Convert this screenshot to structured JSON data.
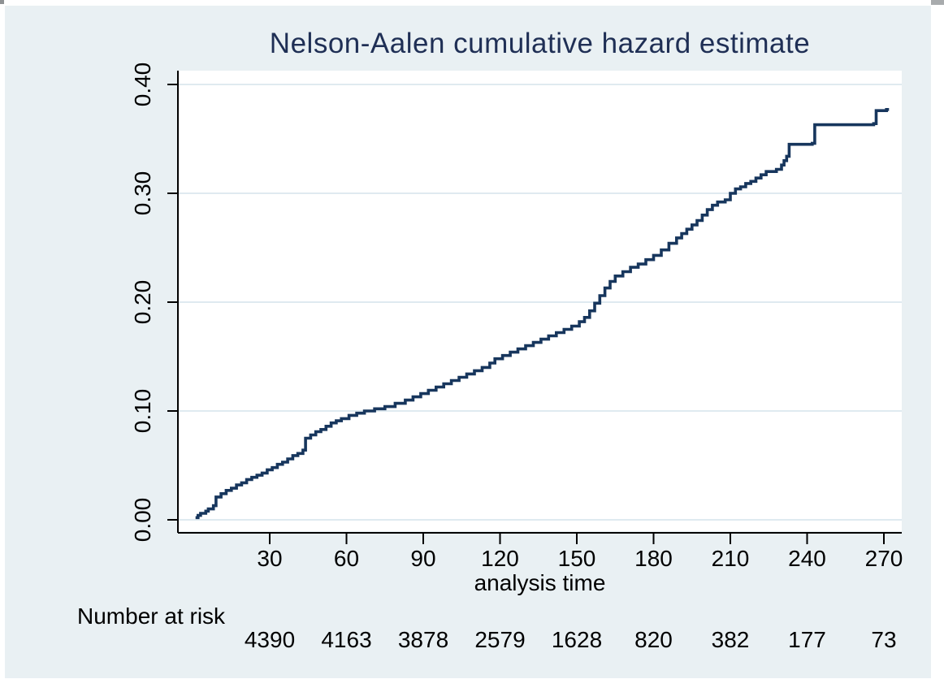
{
  "title": "Nelson-Aalen cumulative hazard estimate",
  "x_axis": {
    "label": "analysis time",
    "tick_labels": [
      "30",
      "60",
      "90",
      "120",
      "150",
      "180",
      "210",
      "240",
      "270"
    ]
  },
  "y_axis": {
    "tick_labels": [
      "0.00",
      "0.10",
      "0.20",
      "0.30",
      "0.40"
    ]
  },
  "risk_table": {
    "label": "Number at risk",
    "values": [
      "4390",
      "4163",
      "3878",
      "2579",
      "1628",
      "820",
      "382",
      "177",
      "73"
    ]
  },
  "colors": {
    "figure_bg": "#e9f0f3",
    "plot_bg": "#ffffff",
    "gridline": "#dfeaf0",
    "axis": "#000000",
    "title_text": "#1f2f55",
    "line": "#17365d",
    "tick_text": "#000000"
  },
  "chart_data": {
    "type": "line",
    "step": true,
    "title": "Nelson-Aalen cumulative hazard estimate",
    "xlabel": "analysis time",
    "ylabel": "",
    "xlim": [
      -6,
      277
    ],
    "ylim": [
      0,
      0.4
    ],
    "x_ticks": [
      30,
      60,
      90,
      120,
      150,
      180,
      210,
      240,
      270
    ],
    "y_ticks": [
      0.0,
      0.1,
      0.2,
      0.3,
      0.4
    ],
    "grid": true,
    "legend": "none",
    "number_at_risk": {
      "times": [
        30,
        60,
        90,
        120,
        150,
        180,
        210,
        240,
        270
      ],
      "counts": [
        4390,
        4163,
        3878,
        2579,
        1628,
        820,
        382,
        177,
        73
      ]
    },
    "series": [
      {
        "name": "Nelson-Aalen cumulative hazard",
        "points": [
          [
            1,
            0.002
          ],
          [
            2,
            0.004
          ],
          [
            3,
            0.006
          ],
          [
            5,
            0.008
          ],
          [
            6,
            0.01
          ],
          [
            8,
            0.013
          ],
          [
            9,
            0.021
          ],
          [
            11,
            0.024
          ],
          [
            13,
            0.027
          ],
          [
            15,
            0.029
          ],
          [
            17,
            0.032
          ],
          [
            19,
            0.034
          ],
          [
            21,
            0.037
          ],
          [
            23,
            0.039
          ],
          [
            25,
            0.041
          ],
          [
            27,
            0.043
          ],
          [
            29,
            0.046
          ],
          [
            31,
            0.048
          ],
          [
            33,
            0.051
          ],
          [
            35,
            0.053
          ],
          [
            37,
            0.056
          ],
          [
            39,
            0.059
          ],
          [
            41,
            0.061
          ],
          [
            43,
            0.064
          ],
          [
            44,
            0.075
          ],
          [
            46,
            0.078
          ],
          [
            48,
            0.081
          ],
          [
            50,
            0.083
          ],
          [
            52,
            0.086
          ],
          [
            54,
            0.089
          ],
          [
            56,
            0.091
          ],
          [
            58,
            0.093
          ],
          [
            61,
            0.096
          ],
          [
            64,
            0.098
          ],
          [
            67,
            0.1
          ],
          [
            71,
            0.102
          ],
          [
            75,
            0.104
          ],
          [
            79,
            0.107
          ],
          [
            83,
            0.11
          ],
          [
            86,
            0.113
          ],
          [
            89,
            0.116
          ],
          [
            92,
            0.119
          ],
          [
            95,
            0.122
          ],
          [
            98,
            0.125
          ],
          [
            101,
            0.128
          ],
          [
            104,
            0.131
          ],
          [
            107,
            0.134
          ],
          [
            110,
            0.137
          ],
          [
            113,
            0.14
          ],
          [
            116,
            0.144
          ],
          [
            118,
            0.148
          ],
          [
            121,
            0.151
          ],
          [
            124,
            0.154
          ],
          [
            127,
            0.157
          ],
          [
            130,
            0.16
          ],
          [
            133,
            0.163
          ],
          [
            136,
            0.166
          ],
          [
            139,
            0.169
          ],
          [
            142,
            0.172
          ],
          [
            145,
            0.175
          ],
          [
            148,
            0.178
          ],
          [
            151,
            0.182
          ],
          [
            153,
            0.186
          ],
          [
            155,
            0.192
          ],
          [
            157,
            0.199
          ],
          [
            159,
            0.206
          ],
          [
            161,
            0.213
          ],
          [
            163,
            0.219
          ],
          [
            165,
            0.224
          ],
          [
            168,
            0.228
          ],
          [
            171,
            0.232
          ],
          [
            174,
            0.235
          ],
          [
            177,
            0.239
          ],
          [
            180,
            0.243
          ],
          [
            183,
            0.248
          ],
          [
            186,
            0.254
          ],
          [
            189,
            0.259
          ],
          [
            191,
            0.263
          ],
          [
            193,
            0.267
          ],
          [
            195,
            0.271
          ],
          [
            197,
            0.275
          ],
          [
            199,
            0.28
          ],
          [
            201,
            0.285
          ],
          [
            203,
            0.289
          ],
          [
            205,
            0.292
          ],
          [
            208,
            0.294
          ],
          [
            210,
            0.3
          ],
          [
            212,
            0.304
          ],
          [
            214,
            0.306
          ],
          [
            216,
            0.309
          ],
          [
            218,
            0.311
          ],
          [
            220,
            0.314
          ],
          [
            222,
            0.317
          ],
          [
            224,
            0.32
          ],
          [
            228,
            0.322
          ],
          [
            230,
            0.326
          ],
          [
            231,
            0.33
          ],
          [
            232,
            0.334
          ],
          [
            233,
            0.345
          ],
          [
            242,
            0.346
          ],
          [
            243,
            0.363
          ],
          [
            266,
            0.364
          ],
          [
            267,
            0.376
          ],
          [
            271,
            0.377
          ]
        ]
      }
    ]
  }
}
